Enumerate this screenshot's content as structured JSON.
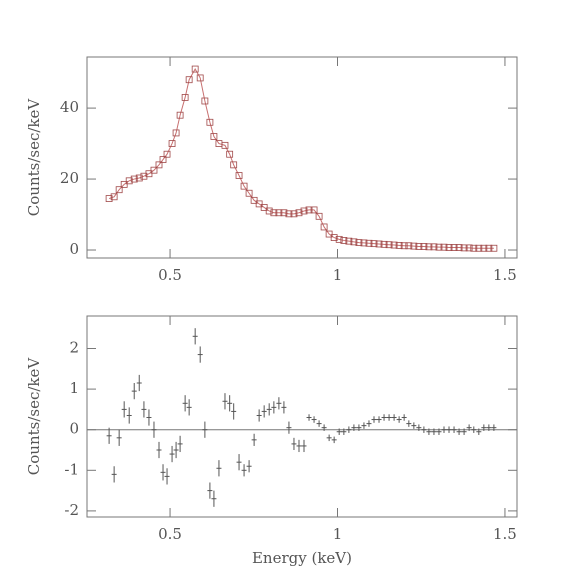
{
  "chart_data": [
    {
      "type": "spectrum",
      "ylabel": "Counts/sec/keV",
      "color": "#a04848",
      "line_color": "#c87070",
      "x": [
        0.318,
        0.333,
        0.348,
        0.363,
        0.378,
        0.393,
        0.408,
        0.422,
        0.437,
        0.452,
        0.467,
        0.479,
        0.491,
        0.506,
        0.518,
        0.53,
        0.545,
        0.557,
        0.575,
        0.59,
        0.604,
        0.619,
        0.631,
        0.646,
        0.664,
        0.678,
        0.69,
        0.706,
        0.721,
        0.736,
        0.751,
        0.766,
        0.781,
        0.796,
        0.81,
        0.825,
        0.84,
        0.855,
        0.87,
        0.885,
        0.9,
        0.915,
        0.93,
        0.945,
        0.96,
        0.975,
        0.99,
        1.005,
        1.019,
        1.034,
        1.049,
        1.064,
        1.079,
        1.094,
        1.109,
        1.124,
        1.139,
        1.154,
        1.169,
        1.184,
        1.199,
        1.213,
        1.228,
        1.243,
        1.258,
        1.273,
        1.288,
        1.303,
        1.318,
        1.333,
        1.348,
        1.363,
        1.378,
        1.393,
        1.407,
        1.422,
        1.437,
        1.452,
        1.467
      ],
      "values": [
        14.5,
        15,
        17,
        18.5,
        19.5,
        20,
        20.3,
        20.8,
        21.5,
        22.5,
        24,
        25.5,
        27,
        30,
        33,
        38,
        43,
        48,
        51,
        48.5,
        42,
        36,
        32,
        30,
        29.5,
        27,
        24,
        21,
        18,
        16,
        14,
        13,
        12,
        11,
        10.5,
        10.5,
        10.5,
        10.2,
        10.2,
        10.5,
        11,
        11.3,
        11.3,
        9.5,
        6.5,
        4.5,
        3.5,
        3,
        2.7,
        2.5,
        2.3,
        2.1,
        2.0,
        1.9,
        1.8,
        1.7,
        1.6,
        1.5,
        1.4,
        1.3,
        1.2,
        1.2,
        1.1,
        1.0,
        1.0,
        0.9,
        0.9,
        0.8,
        0.8,
        0.7,
        0.7,
        0.7,
        0.6,
        0.6,
        0.5,
        0.5,
        0.5,
        0.5,
        0.5
      ],
      "xlim": [
        0.252,
        1.536
      ],
      "ylim": [
        -2.25,
        54.4
      ],
      "xticks": [
        0.5,
        1,
        1.5
      ],
      "yticks": [
        0,
        20,
        40
      ]
    },
    {
      "type": "residuals",
      "ylabel": "Counts/sec/keV",
      "xlabel": "Energy (keV)",
      "color": "#555555",
      "zero_line": 0,
      "x": [
        0.318,
        0.333,
        0.348,
        0.363,
        0.378,
        0.393,
        0.408,
        0.422,
        0.437,
        0.452,
        0.467,
        0.479,
        0.491,
        0.506,
        0.518,
        0.53,
        0.545,
        0.557,
        0.575,
        0.59,
        0.604,
        0.619,
        0.631,
        0.646,
        0.664,
        0.678,
        0.69,
        0.706,
        0.721,
        0.736,
        0.751,
        0.766,
        0.781,
        0.796,
        0.81,
        0.825,
        0.84,
        0.855,
        0.87,
        0.885,
        0.9,
        0.915,
        0.93,
        0.945,
        0.96,
        0.975,
        0.99,
        1.005,
        1.019,
        1.034,
        1.049,
        1.064,
        1.079,
        1.094,
        1.109,
        1.124,
        1.139,
        1.154,
        1.169,
        1.184,
        1.199,
        1.213,
        1.228,
        1.243,
        1.258,
        1.273,
        1.288,
        1.303,
        1.318,
        1.333,
        1.348,
        1.363,
        1.378,
        1.393,
        1.407,
        1.422,
        1.437,
        1.452,
        1.467
      ],
      "values": [
        -0.15,
        -1.1,
        -0.2,
        0.5,
        0.35,
        0.95,
        1.15,
        0.5,
        0.3,
        0.0,
        -0.5,
        -1.05,
        -1.15,
        -0.6,
        -0.5,
        -0.35,
        0.65,
        0.55,
        2.3,
        1.85,
        0.0,
        -1.5,
        -1.7,
        -0.95,
        0.7,
        0.65,
        0.45,
        -0.8,
        -1.0,
        -0.9,
        -0.25,
        0.35,
        0.45,
        0.5,
        0.55,
        0.65,
        0.55,
        0.05,
        -0.35,
        -0.4,
        -0.4,
        0.3,
        0.25,
        0.15,
        0.05,
        -0.2,
        -0.25,
        -0.05,
        -0.05,
        0.0,
        0.05,
        0.05,
        0.1,
        0.15,
        0.25,
        0.25,
        0.3,
        0.3,
        0.3,
        0.25,
        0.3,
        0.15,
        0.1,
        0.05,
        0.0,
        -0.05,
        -0.05,
        -0.05,
        0.0,
        0.0,
        0.0,
        -0.05,
        -0.05,
        0.05,
        0.0,
        -0.05,
        0.05,
        0.05,
        0.05
      ],
      "errors": [
        0.2,
        0.2,
        0.2,
        0.2,
        0.2,
        0.2,
        0.2,
        0.2,
        0.2,
        0.2,
        0.2,
        0.2,
        0.2,
        0.2,
        0.2,
        0.2,
        0.2,
        0.2,
        0.2,
        0.2,
        0.2,
        0.2,
        0.2,
        0.2,
        0.2,
        0.2,
        0.2,
        0.2,
        0.15,
        0.15,
        0.15,
        0.15,
        0.15,
        0.15,
        0.15,
        0.15,
        0.15,
        0.15,
        0.15,
        0.15,
        0.15,
        0.08,
        0.08,
        0.08,
        0.08,
        0.08,
        0.08,
        0.08,
        0.08,
        0.08,
        0.08,
        0.08,
        0.08,
        0.08,
        0.08,
        0.08,
        0.08,
        0.08,
        0.08,
        0.08,
        0.08,
        0.08,
        0.08,
        0.08,
        0.08,
        0.08,
        0.08,
        0.08,
        0.08,
        0.08,
        0.08,
        0.08,
        0.08,
        0.08,
        0.08,
        0.08,
        0.08,
        0.08,
        0.08
      ],
      "xlim": [
        0.252,
        1.536
      ],
      "ylim": [
        -2.15,
        2.8
      ],
      "xticks": [
        0.5,
        1,
        1.5
      ],
      "yticks": [
        -2,
        -1,
        0,
        1,
        2
      ]
    }
  ]
}
